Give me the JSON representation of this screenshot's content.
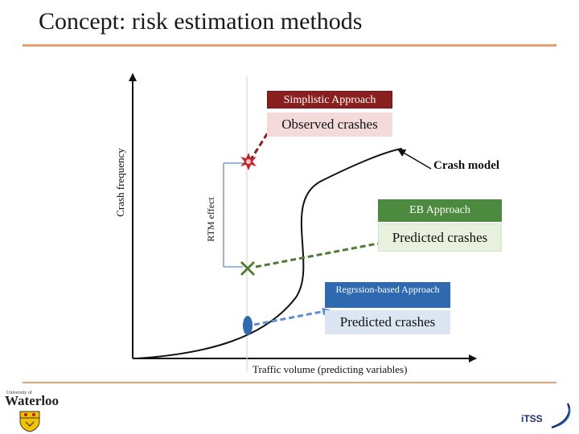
{
  "title": "Concept: risk estimation methods",
  "boxes": {
    "simplistic_header": "Simplistic Approach",
    "simplistic_body": "Observed crashes",
    "eb_header": "EB Approach",
    "eb_body": "Predicted crashes",
    "regression_header": "Regrssion-based Approach",
    "regression_body": "Predicted crashes"
  },
  "labels": {
    "crash_model": "Crash model",
    "rtm_effect": "RTM effect",
    "y_axis": "Crash frequency",
    "x_axis": "Traffic volume (predicting variables)"
  },
  "logos": {
    "waterloo_small": "University of",
    "waterloo_name": "Waterloo",
    "itss": "iTSS"
  },
  "colors": {
    "title_rule": "#e3a274",
    "simplistic_header_bg": "#8a1f1f",
    "simplistic_body_bg": "#f4dada",
    "eb_header_bg": "#4c8a3f",
    "eb_body_bg": "#e7f1dd",
    "regression_header_bg": "#2f6ab0",
    "regression_body_bg": "#dce6f3",
    "observed_marker": "#c0282d",
    "eb_marker": "#4e7a32",
    "regression_marker": "#2f6ab0"
  },
  "icons": {
    "observed_marker": "star-burst-icon",
    "eb_marker": "cross-icon",
    "regression_marker": "ellipse-icon"
  }
}
